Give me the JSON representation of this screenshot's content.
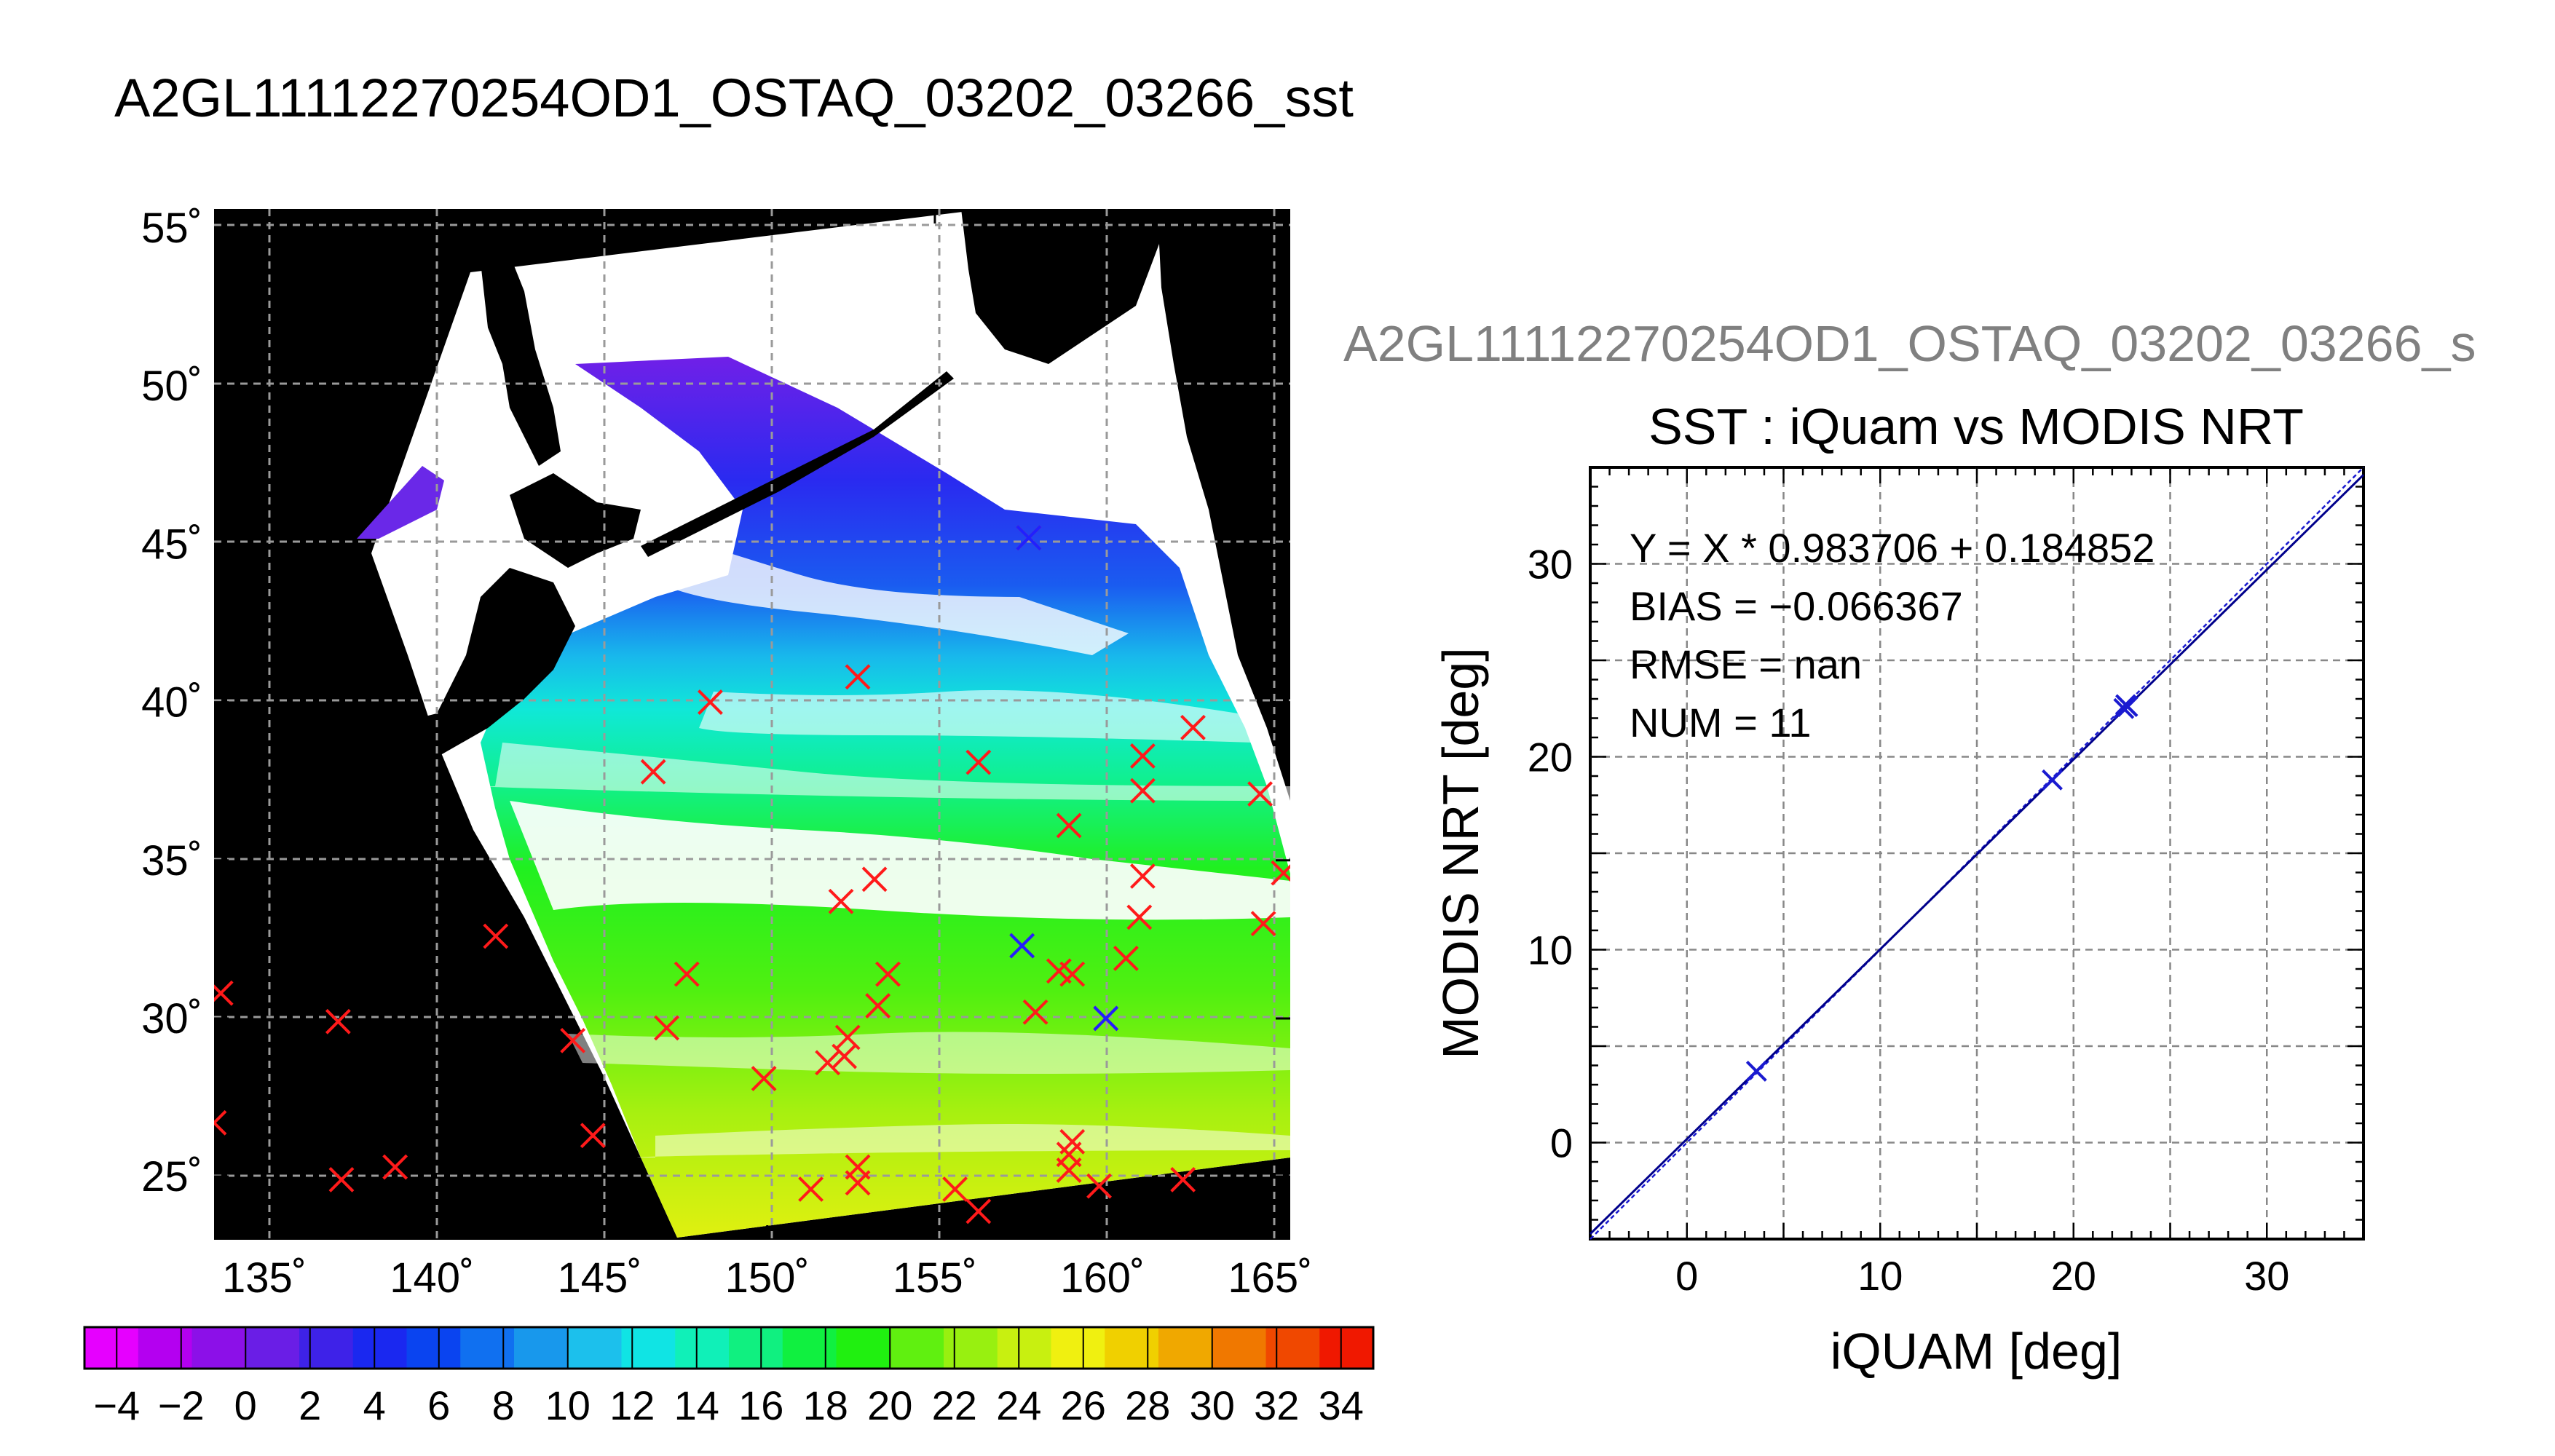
{
  "header": {
    "title": "A2GL11112270254OD1_OSTAQ_03202_03266_sst",
    "right_title": "A2GL11112270254OD1_OSTAQ_03202_03266_s"
  },
  "chart_data": [
    {
      "type": "scatter",
      "subtype": "map",
      "title": "",
      "xlabel": "",
      "ylabel": "",
      "xlim": [
        133.5,
        165.6
      ],
      "ylim": [
        23,
        55.6
      ],
      "grid": true,
      "x_ticks": [
        135,
        140,
        145,
        150,
        155,
        160,
        165
      ],
      "x_tick_labels": [
        "135˚",
        "140˚",
        "145˚",
        "150˚",
        "155˚",
        "160˚",
        "165˚"
      ],
      "y_ticks": [
        25,
        30,
        35,
        40,
        45,
        50,
        55
      ],
      "y_tick_labels": [
        "25˚",
        "30˚",
        "35˚",
        "40˚",
        "45˚",
        "50˚",
        "55˚"
      ],
      "colorbar": {
        "range": [
          -5,
          35
        ],
        "tick_values": [
          -4,
          -2,
          0,
          2,
          4,
          6,
          8,
          10,
          12,
          14,
          16,
          18,
          20,
          22,
          24,
          26,
          28,
          30,
          32,
          34
        ],
        "tick_labels": [
          "−4",
          "−2",
          "0",
          "2",
          "4",
          "6",
          "8",
          "10",
          "12",
          "14",
          "16",
          "18",
          "20",
          "22",
          "24",
          "26",
          "28",
          "30",
          "32",
          "34"
        ],
        "colors": [
          "#e600ff",
          "#b400f0",
          "#8c10e8",
          "#6a1ee6",
          "#3e22e8",
          "#1a28f0",
          "#0a44f0",
          "#1070f0",
          "#1898ec",
          "#1cc0ec",
          "#10e4e4",
          "#10f0b8",
          "#10f080",
          "#10f040",
          "#20f010",
          "#60f010",
          "#98f010",
          "#c8f010",
          "#f0f010",
          "#f0d000",
          "#f0a800",
          "#f07800",
          "#f04800",
          "#f01800"
        ]
      },
      "series": [
        {
          "marker": "x",
          "color": "#ff1a1a",
          "points": [
            [
              133.7,
              30.8
            ],
            [
              133.5,
              26.7
            ],
            [
              137.2,
              29.9
            ],
            [
              137.3,
              24.9
            ],
            [
              138.9,
              25.3
            ],
            [
              141.9,
              32.6
            ],
            [
              144.2,
              29.3
            ],
            [
              144.8,
              26.3
            ],
            [
              146.6,
              37.8
            ],
            [
              147.0,
              29.7
            ],
            [
              147.6,
              31.4
            ],
            [
              148.3,
              40.0
            ],
            [
              149.9,
              28.1
            ],
            [
              151.3,
              24.6
            ],
            [
              151.8,
              28.6
            ],
            [
              152.2,
              33.7
            ],
            [
              152.3,
              28.8
            ],
            [
              152.4,
              29.4
            ],
            [
              152.7,
              25.3
            ],
            [
              152.7,
              24.8
            ],
            [
              152.7,
              40.8
            ],
            [
              153.2,
              34.4
            ],
            [
              153.3,
              30.4
            ],
            [
              153.6,
              31.4
            ],
            [
              155.6,
              24.6
            ],
            [
              156.3,
              23.9
            ],
            [
              156.3,
              38.1
            ],
            [
              157.6,
              32.3
            ],
            [
              157.8,
              45.2
            ],
            [
              158.0,
              30.2
            ],
            [
              158.7,
              31.5
            ],
            [
              159.0,
              25.2
            ],
            [
              159.0,
              36.1
            ],
            [
              159.0,
              25.7
            ],
            [
              159.1,
              26.1
            ],
            [
              159.1,
              31.4
            ],
            [
              159.9,
              24.7
            ],
            [
              160.1,
              30.0
            ],
            [
              160.7,
              31.9
            ],
            [
              161.1,
              33.2
            ],
            [
              161.2,
              34.5
            ],
            [
              161.2,
              37.2
            ],
            [
              161.2,
              38.3
            ],
            [
              162.4,
              24.9
            ],
            [
              162.7,
              39.2
            ],
            [
              164.7,
              37.1
            ],
            [
              164.8,
              33.0
            ],
            [
              165.4,
              34.6
            ]
          ]
        },
        {
          "marker": "x",
          "color": "#2020ff",
          "points": [
            [
              157.6,
              32.3
            ],
            [
              160.1,
              30.0
            ],
            [
              157.8,
              45.2
            ]
          ]
        }
      ]
    },
    {
      "type": "scatter",
      "title": "SST : iQuam vs MODIS NRT",
      "xlabel": "iQUAM [deg]",
      "ylabel": "MODIS NRT [deg]",
      "xlim": [
        -5,
        35
      ],
      "ylim": [
        -5,
        35
      ],
      "grid": true,
      "x_ticks": [
        0,
        10,
        20,
        30
      ],
      "y_ticks": [
        0,
        10,
        20,
        30
      ],
      "annotations": [
        "Y = X * 0.983706 + 0.184852",
        "BIAS = −0.066367",
        "RMSE = nan",
        "NUM = 11"
      ],
      "regression": {
        "slope": 0.983706,
        "intercept": 0.184852
      },
      "series": [
        {
          "marker": "x",
          "color": "#1a1ad0",
          "points": [
            [
              3.6,
              3.7
            ],
            [
              18.9,
              18.8
            ],
            [
              22.6,
              22.5
            ],
            [
              22.7,
              22.7
            ],
            [
              22.8,
              22.6
            ]
          ]
        }
      ]
    }
  ]
}
